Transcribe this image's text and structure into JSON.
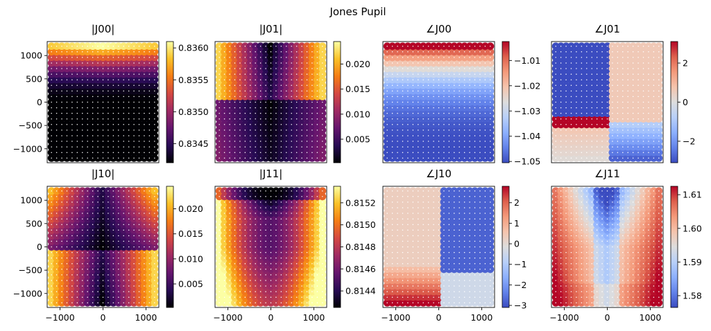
{
  "title": "Jones Pupil",
  "chart_data": [
    {
      "type": "scatter",
      "title": "|J00|",
      "pattern": "mag00",
      "cmap": "inferno",
      "clim": [
        0.8342,
        0.8361
      ],
      "cbar_ticks": [
        0.8345,
        0.835,
        0.8355,
        0.836
      ],
      "cbar_tick_labels": [
        "0.8345",
        "0.8350",
        "0.8355",
        "0.8360"
      ],
      "xlim": [
        -1300,
        1300
      ],
      "ylim": [
        -1300,
        1300
      ],
      "yticks": [
        -1000,
        -500,
        0,
        500,
        1000
      ],
      "yticklabels": [
        "−1000",
        "−500",
        "0",
        "500",
        "1000"
      ]
    },
    {
      "type": "scatter",
      "title": "|J01|",
      "pattern": "mag01",
      "cmap": "inferno",
      "clim": [
        0.0003,
        0.0245
      ],
      "cbar_ticks": [
        0.005,
        0.01,
        0.015,
        0.02
      ],
      "cbar_tick_labels": [
        "0.005",
        "0.010",
        "0.015",
        "0.020"
      ],
      "xlim": [
        -1300,
        1300
      ],
      "ylim": [
        -1300,
        1300
      ]
    },
    {
      "type": "scatter",
      "title": "∠J00",
      "pattern": "ph00",
      "cmap": "coolwarm",
      "clim": [
        -1.0505,
        -1.0025
      ],
      "cbar_ticks": [
        -1.05,
        -1.04,
        -1.03,
        -1.02,
        -1.01
      ],
      "cbar_tick_labels": [
        "−1.05",
        "−1.04",
        "−1.03",
        "−1.02",
        "−1.01"
      ],
      "xlim": [
        -1300,
        1300
      ],
      "ylim": [
        -1300,
        1300
      ]
    },
    {
      "type": "scatter",
      "title": "∠J01",
      "pattern": "ph01",
      "cmap": "coolwarm",
      "clim": [
        -3.1,
        3.1
      ],
      "cbar_ticks": [
        -2,
        0,
        2
      ],
      "cbar_tick_labels": [
        "−2",
        "0",
        "2"
      ],
      "xlim": [
        -1300,
        1300
      ],
      "ylim": [
        -1300,
        1300
      ]
    },
    {
      "type": "scatter",
      "title": "|J10|",
      "pattern": "mag10",
      "cmap": "inferno",
      "clim": [
        0.0003,
        0.0245
      ],
      "cbar_ticks": [
        0.005,
        0.01,
        0.015,
        0.02
      ],
      "cbar_tick_labels": [
        "0.005",
        "0.010",
        "0.015",
        "0.020"
      ],
      "xlim": [
        -1300,
        1300
      ],
      "ylim": [
        -1300,
        1300
      ],
      "yticks": [
        -1000,
        -500,
        0,
        500,
        1000
      ],
      "yticklabels": [
        "−1000",
        "−500",
        "0",
        "500",
        "1000"
      ],
      "xticks": [
        -1000,
        0,
        1000
      ],
      "xticklabels": [
        "−1000",
        "0",
        "1000"
      ]
    },
    {
      "type": "scatter",
      "title": "|J11|",
      "pattern": "mag11",
      "cmap": "inferno",
      "clim": [
        0.81425,
        0.81535
      ],
      "cbar_ticks": [
        0.8144,
        0.8146,
        0.8148,
        0.815,
        0.8152
      ],
      "cbar_tick_labels": [
        "0.8144",
        "0.8146",
        "0.8148",
        "0.8150",
        "0.8152"
      ],
      "xlim": [
        -1300,
        1300
      ],
      "ylim": [
        -1300,
        1300
      ],
      "xticks": [
        -1000,
        0,
        1000
      ],
      "xticklabels": [
        "−1000",
        "0",
        "1000"
      ]
    },
    {
      "type": "scatter",
      "title": "∠J10",
      "pattern": "ph10",
      "cmap": "coolwarm",
      "clim": [
        -3.1,
        2.8
      ],
      "cbar_ticks": [
        -3,
        -2,
        -1,
        0,
        1,
        2
      ],
      "cbar_tick_labels": [
        "−3",
        "−2",
        "−1",
        "0",
        "1",
        "2"
      ],
      "xlim": [
        -1300,
        1300
      ],
      "ylim": [
        -1300,
        1300
      ],
      "xticks": [
        -1000,
        0,
        1000
      ],
      "xticklabels": [
        "−1000",
        "0",
        "1000"
      ]
    },
    {
      "type": "scatter",
      "title": "∠J11",
      "pattern": "ph11",
      "cmap": "coolwarm",
      "clim": [
        1.5765,
        1.6125
      ],
      "cbar_ticks": [
        1.58,
        1.59,
        1.6,
        1.61
      ],
      "cbar_tick_labels": [
        "1.58",
        "1.59",
        "1.60",
        "1.61"
      ],
      "xlim": [
        -1300,
        1300
      ],
      "ylim": [
        -1300,
        1300
      ],
      "xticks": [
        -1000,
        0,
        1000
      ],
      "xticklabels": [
        "−1000",
        "0",
        "1000"
      ]
    }
  ]
}
